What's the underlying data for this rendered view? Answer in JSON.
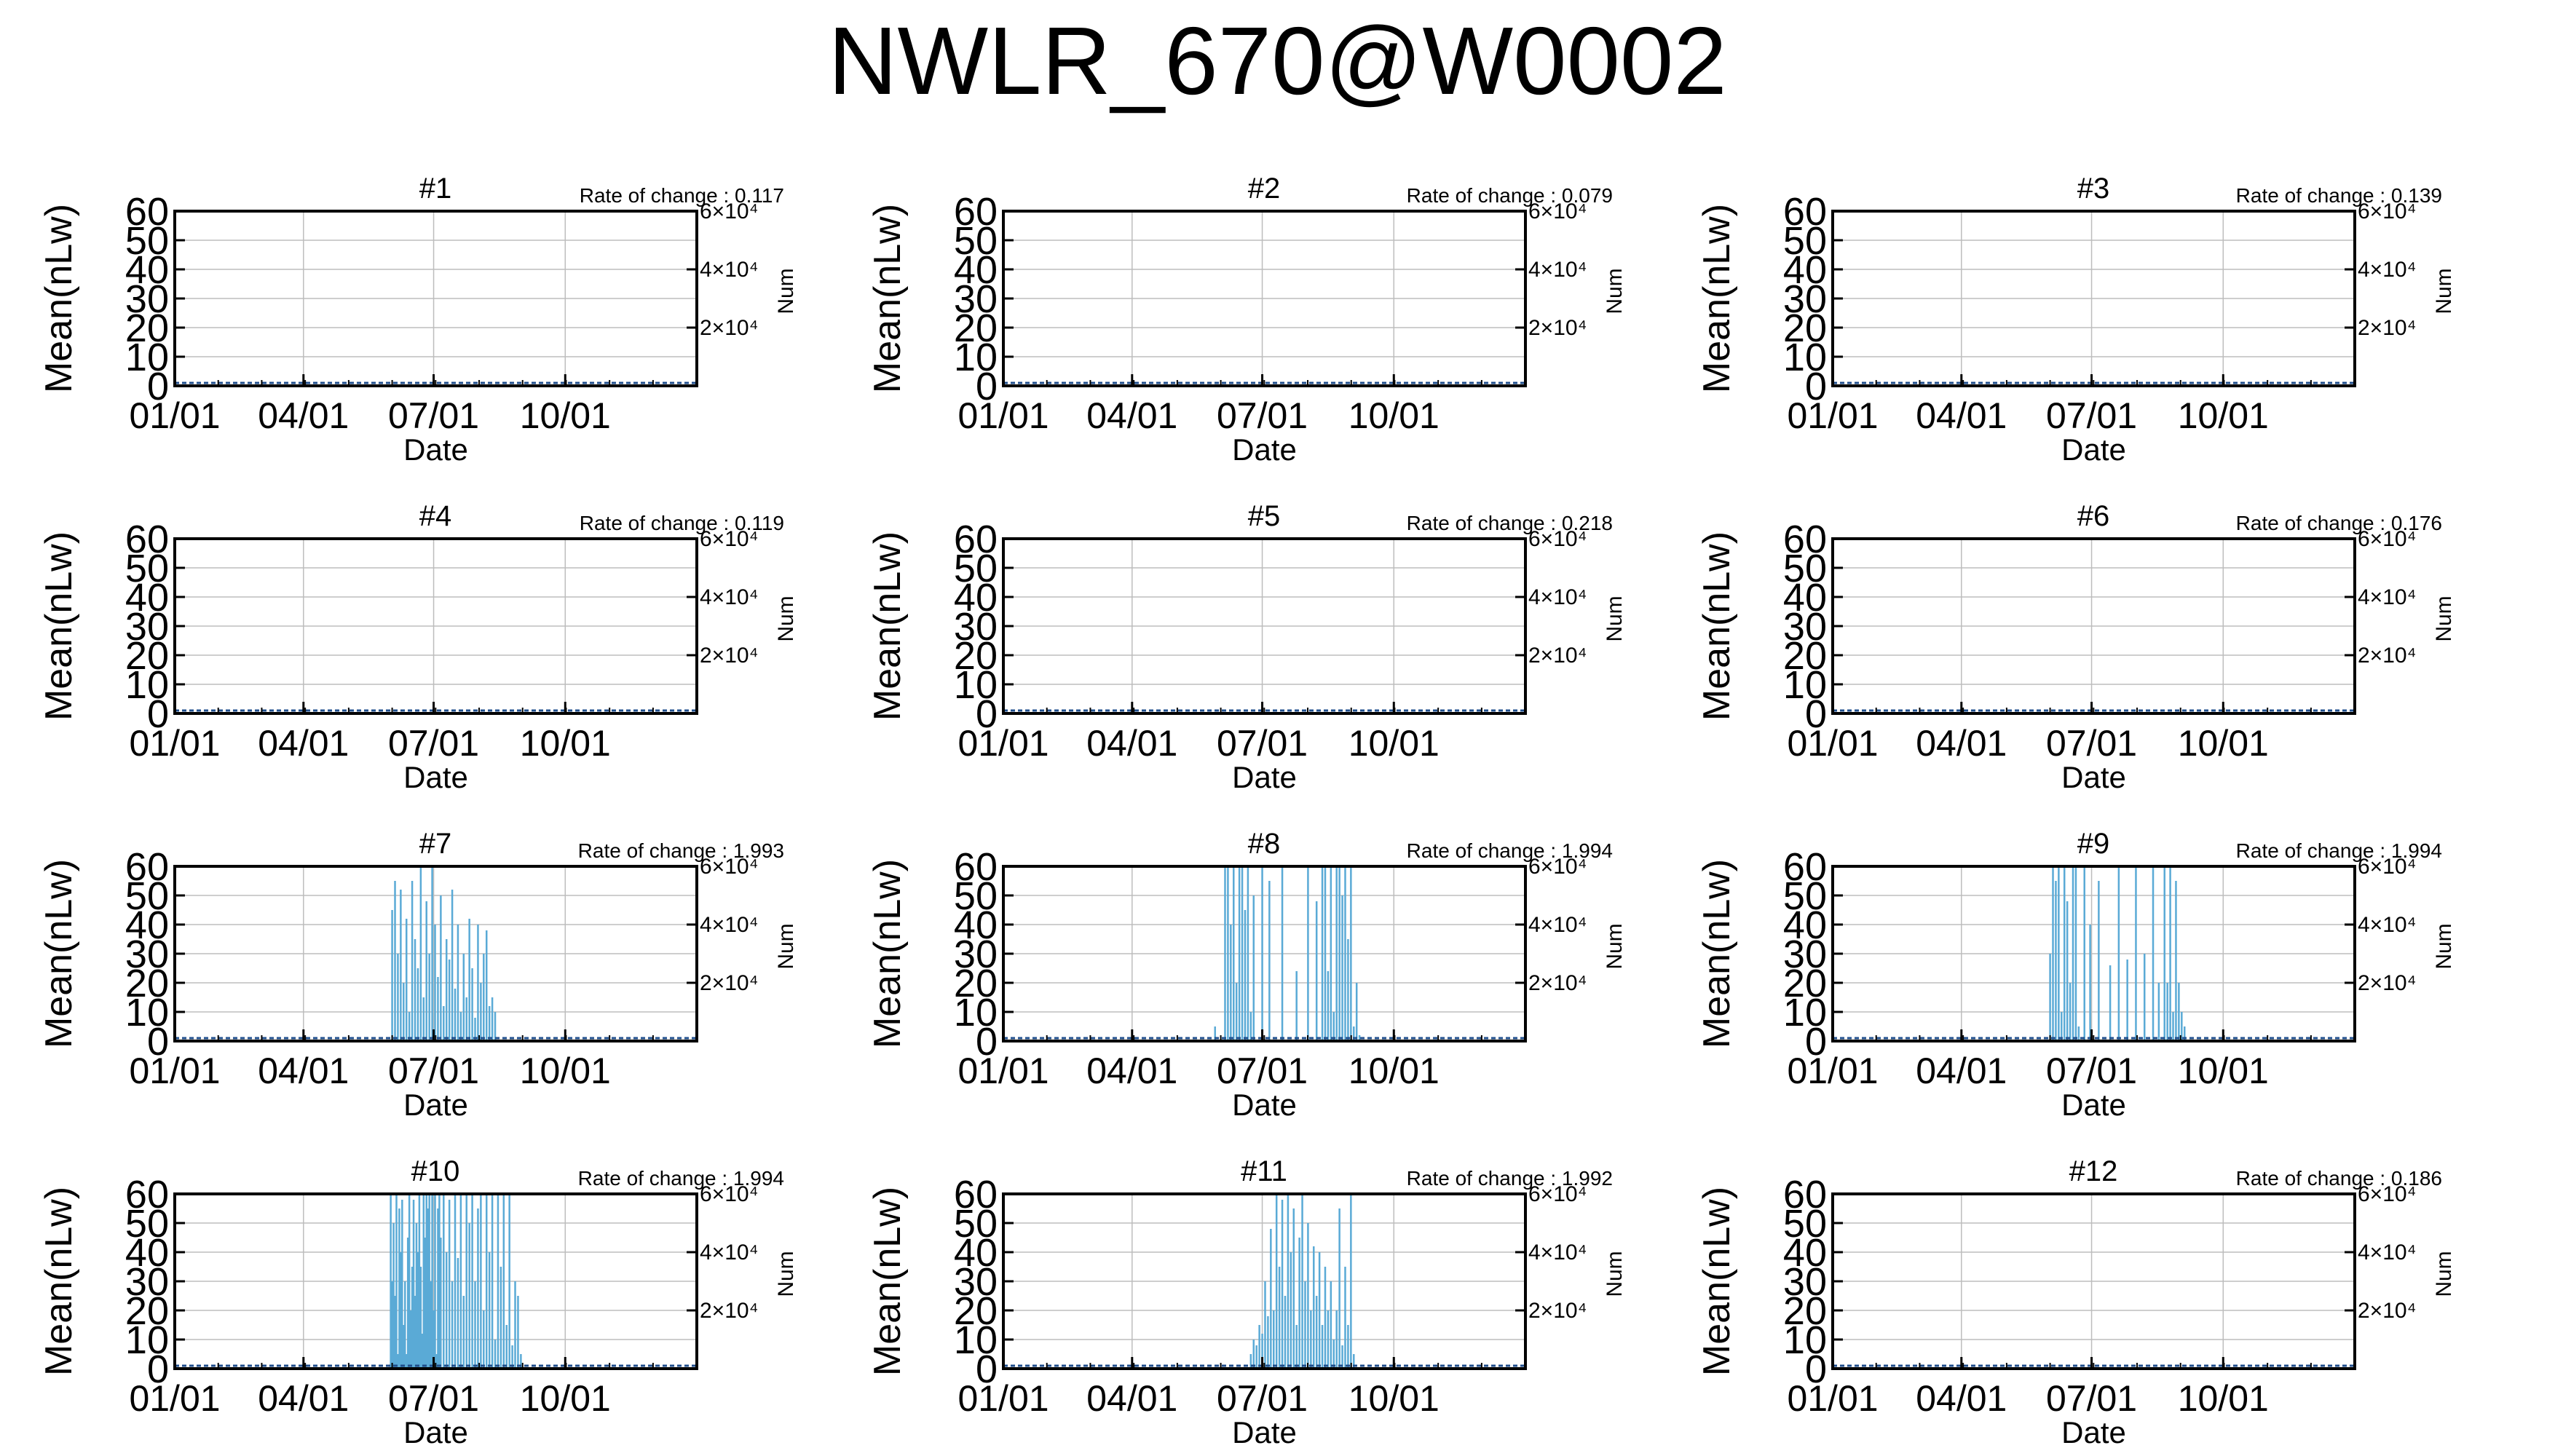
{
  "title": "NWLR_670@W0002",
  "colors": {
    "series": "#5aaad6",
    "grid": "#bdbdbd",
    "axis": "#000000",
    "baseline": "#1f4e8c"
  },
  "axis_text": {
    "xlabel": "Date",
    "ylabel": "Mean(nLw)",
    "y2label": "Num",
    "xticks": [
      "01/01",
      "04/01",
      "07/01",
      "10/01"
    ],
    "yticks": [
      "0",
      "10",
      "20",
      "30",
      "40",
      "50",
      "60"
    ],
    "y2ticks": [
      "2×10⁴",
      "4×10⁴",
      "6×10⁴"
    ],
    "rate_prefix": "Rate of change : "
  },
  "chart_data": [
    {
      "panel": "#1",
      "type": "line",
      "rate": "0.117",
      "ylim": [
        0,
        60
      ],
      "y2lim": [
        0,
        60000
      ],
      "grid": true,
      "segments": []
    },
    {
      "panel": "#2",
      "type": "line",
      "rate": "0.079",
      "ylim": [
        0,
        60
      ],
      "y2lim": [
        0,
        60000
      ],
      "grid": true,
      "segments": []
    },
    {
      "panel": "#3",
      "type": "line",
      "rate": "0.139",
      "ylim": [
        0,
        60
      ],
      "y2lim": [
        0,
        60000
      ],
      "grid": true,
      "segments": []
    },
    {
      "panel": "#4",
      "type": "line",
      "rate": "0.119",
      "ylim": [
        0,
        60
      ],
      "y2lim": [
        0,
        60000
      ],
      "grid": true,
      "segments": []
    },
    {
      "panel": "#5",
      "type": "line",
      "rate": "0.218",
      "ylim": [
        0,
        60
      ],
      "y2lim": [
        0,
        60000
      ],
      "grid": true,
      "segments": []
    },
    {
      "panel": "#6",
      "type": "line",
      "rate": "0.176",
      "ylim": [
        0,
        60
      ],
      "y2lim": [
        0,
        60000
      ],
      "grid": true,
      "segments": []
    },
    {
      "panel": "#7",
      "type": "line",
      "rate": "1.993",
      "ylim": [
        0,
        60
      ],
      "y2lim": [
        0,
        60000
      ],
      "grid": true,
      "segments": [
        [
          152,
          45
        ],
        [
          154,
          55
        ],
        [
          156,
          30
        ],
        [
          158,
          52
        ],
        [
          160,
          20
        ],
        [
          162,
          42
        ],
        [
          164,
          10
        ],
        [
          166,
          55
        ],
        [
          168,
          35
        ],
        [
          170,
          25
        ],
        [
          172,
          60
        ],
        [
          174,
          15
        ],
        [
          176,
          48
        ],
        [
          178,
          30
        ],
        [
          180,
          60
        ],
        [
          182,
          40
        ],
        [
          184,
          22
        ],
        [
          186,
          50
        ],
        [
          188,
          12
        ],
        [
          190,
          35
        ],
        [
          192,
          28
        ],
        [
          194,
          52
        ],
        [
          196,
          18
        ],
        [
          198,
          40
        ],
        [
          200,
          10
        ],
        [
          202,
          30
        ],
        [
          204,
          15
        ],
        [
          206,
          42
        ],
        [
          208,
          25
        ],
        [
          210,
          8
        ],
        [
          212,
          40
        ],
        [
          214,
          20
        ],
        [
          216,
          30
        ],
        [
          218,
          38
        ],
        [
          220,
          12
        ],
        [
          222,
          15
        ],
        [
          224,
          10
        ]
      ]
    },
    {
      "panel": "#8",
      "type": "line",
      "rate": "1.994",
      "ylim": [
        0,
        60
      ],
      "y2lim": [
        0,
        60000
      ],
      "grid": true,
      "segments": [
        [
          148,
          5
        ],
        [
          155,
          60
        ],
        [
          157,
          60
        ],
        [
          159,
          40
        ],
        [
          161,
          60
        ],
        [
          163,
          20
        ],
        [
          165,
          60
        ],
        [
          167,
          60
        ],
        [
          169,
          45
        ],
        [
          171,
          60
        ],
        [
          173,
          10
        ],
        [
          175,
          50
        ],
        [
          181,
          60
        ],
        [
          186,
          55
        ],
        [
          195,
          60
        ],
        [
          205,
          24
        ],
        [
          213,
          60
        ],
        [
          219,
          48
        ],
        [
          223,
          60
        ],
        [
          225,
          60
        ],
        [
          227,
          24
        ],
        [
          229,
          60
        ],
        [
          231,
          10
        ],
        [
          233,
          60
        ],
        [
          235,
          60
        ],
        [
          237,
          50
        ],
        [
          239,
          60
        ],
        [
          241,
          35
        ],
        [
          243,
          60
        ],
        [
          245,
          5
        ],
        [
          247,
          20
        ],
        [
          249,
          2
        ]
      ]
    },
    {
      "panel": "#9",
      "type": "line",
      "rate": "1.994",
      "ylim": [
        0,
        60
      ],
      "y2lim": [
        0,
        60000
      ],
      "grid": true,
      "segments": [
        [
          152,
          30
        ],
        [
          154,
          60
        ],
        [
          156,
          55
        ],
        [
          158,
          60
        ],
        [
          160,
          10
        ],
        [
          162,
          60
        ],
        [
          164,
          48
        ],
        [
          166,
          20
        ],
        [
          168,
          60
        ],
        [
          170,
          60
        ],
        [
          172,
          5
        ],
        [
          176,
          60
        ],
        [
          180,
          40
        ],
        [
          186,
          55
        ],
        [
          194,
          26
        ],
        [
          200,
          60
        ],
        [
          206,
          28
        ],
        [
          212,
          60
        ],
        [
          218,
          30
        ],
        [
          224,
          60
        ],
        [
          228,
          20
        ],
        [
          232,
          60
        ],
        [
          234,
          20
        ],
        [
          236,
          60
        ],
        [
          238,
          10
        ],
        [
          240,
          55
        ],
        [
          242,
          20
        ],
        [
          244,
          10
        ],
        [
          246,
          5
        ]
      ]
    },
    {
      "panel": "#10",
      "type": "line",
      "rate": "1.994",
      "ylim": [
        0,
        60
      ],
      "y2lim": [
        0,
        60000
      ],
      "grid": true,
      "segments": [
        [
          151,
          60
        ],
        [
          152,
          30
        ],
        [
          153,
          50
        ],
        [
          154,
          25
        ],
        [
          155,
          60
        ],
        [
          156,
          5
        ],
        [
          157,
          55
        ],
        [
          158,
          40
        ],
        [
          159,
          58
        ],
        [
          160,
          15
        ],
        [
          161,
          30
        ],
        [
          162,
          5
        ],
        [
          163,
          45
        ],
        [
          164,
          60
        ],
        [
          165,
          20
        ],
        [
          166,
          35
        ],
        [
          167,
          58
        ],
        [
          168,
          25
        ],
        [
          169,
          50
        ],
        [
          170,
          40
        ],
        [
          171,
          60
        ],
        [
          172,
          35
        ],
        [
          173,
          12
        ],
        [
          174,
          60
        ],
        [
          175,
          45
        ],
        [
          176,
          60
        ],
        [
          177,
          55
        ],
        [
          178,
          60
        ],
        [
          179,
          30
        ],
        [
          180,
          60
        ],
        [
          181,
          20
        ],
        [
          182,
          60
        ],
        [
          183,
          5
        ],
        [
          184,
          55
        ],
        [
          185,
          60
        ],
        [
          186,
          45
        ],
        [
          188,
          60
        ],
        [
          190,
          40
        ],
        [
          192,
          58
        ],
        [
          194,
          30
        ],
        [
          196,
          60
        ],
        [
          198,
          38
        ],
        [
          200,
          60
        ],
        [
          202,
          25
        ],
        [
          204,
          60
        ],
        [
          206,
          50
        ],
        [
          208,
          60
        ],
        [
          210,
          30
        ],
        [
          212,
          55
        ],
        [
          214,
          60
        ],
        [
          216,
          20
        ],
        [
          218,
          60
        ],
        [
          220,
          40
        ],
        [
          222,
          60
        ],
        [
          224,
          10
        ],
        [
          226,
          60
        ],
        [
          228,
          35
        ],
        [
          230,
          60
        ],
        [
          232,
          15
        ],
        [
          234,
          60
        ],
        [
          236,
          8
        ],
        [
          238,
          30
        ],
        [
          240,
          25
        ],
        [
          242,
          5
        ]
      ]
    },
    {
      "panel": "#11",
      "type": "line",
      "rate": "1.992",
      "ylim": [
        0,
        60
      ],
      "y2lim": [
        0,
        60000
      ],
      "grid": true,
      "segments": [
        [
          173,
          5
        ],
        [
          175,
          10
        ],
        [
          177,
          8
        ],
        [
          179,
          15
        ],
        [
          181,
          12
        ],
        [
          183,
          30
        ],
        [
          185,
          18
        ],
        [
          187,
          48
        ],
        [
          189,
          20
        ],
        [
          191,
          60
        ],
        [
          193,
          35
        ],
        [
          195,
          58
        ],
        [
          197,
          25
        ],
        [
          199,
          60
        ],
        [
          201,
          40
        ],
        [
          203,
          55
        ],
        [
          205,
          15
        ],
        [
          207,
          45
        ],
        [
          209,
          60
        ],
        [
          211,
          30
        ],
        [
          213,
          50
        ],
        [
          215,
          20
        ],
        [
          217,
          42
        ],
        [
          219,
          25
        ],
        [
          221,
          40
        ],
        [
          223,
          15
        ],
        [
          225,
          35
        ],
        [
          227,
          20
        ],
        [
          229,
          30
        ],
        [
          231,
          10
        ],
        [
          233,
          20
        ],
        [
          235,
          55
        ],
        [
          237,
          8
        ],
        [
          239,
          35
        ],
        [
          241,
          15
        ],
        [
          243,
          60
        ],
        [
          245,
          5
        ]
      ]
    },
    {
      "panel": "#12",
      "type": "line",
      "rate": "0.186",
      "ylim": [
        0,
        60
      ],
      "y2lim": [
        0,
        60000
      ],
      "grid": true,
      "segments": []
    }
  ]
}
